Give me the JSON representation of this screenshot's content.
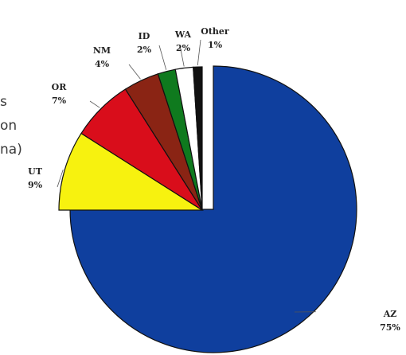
{
  "chart_data": {
    "type": "pie",
    "categories": [
      "AZ",
      "UT",
      "OR",
      "NM",
      "ID",
      "WA",
      "Other"
    ],
    "values": [
      75,
      9,
      7,
      4,
      2,
      2,
      1
    ],
    "percent_labels": [
      "75%",
      "9%",
      "7%",
      "4%",
      "2%",
      "2%",
      "1%"
    ],
    "colors": [
      "#0f3f9e",
      "#f7f20f",
      "#d90d1b",
      "#8a2414",
      "#0f7a1e",
      "#ffffff",
      "#111111"
    ],
    "exploded_slice": "AZ",
    "legend": "none",
    "cropped_text_fragments": [
      "s",
      "on",
      "na)"
    ]
  }
}
